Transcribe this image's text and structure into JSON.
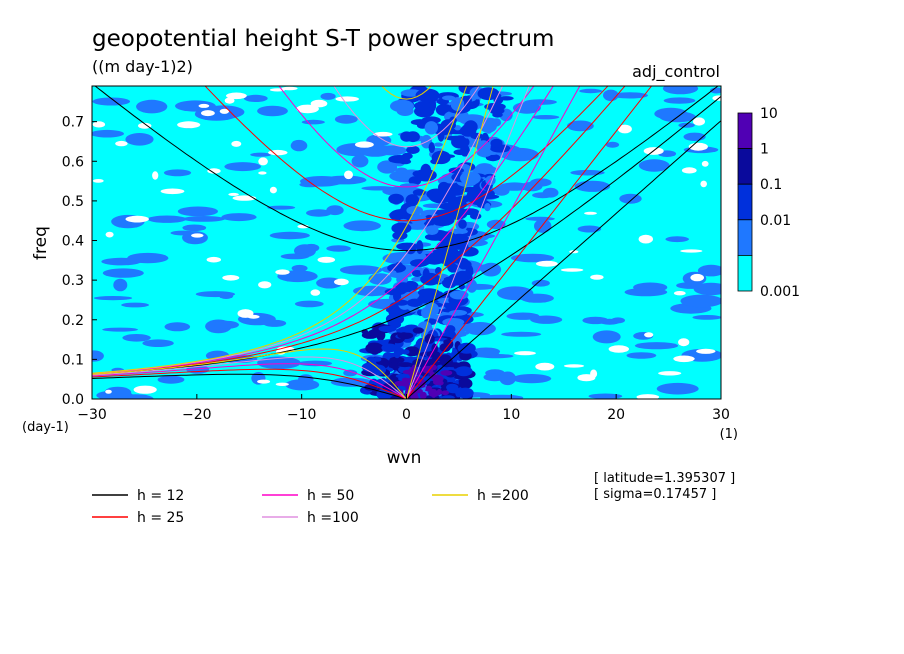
{
  "chart_data": {
    "type": "heatmap",
    "title": "geopotential height S-T power spectrum",
    "subtitle": "((m day-1)2)",
    "case_label": "adj_control",
    "xlabel": "wvn",
    "ylabel": "freq",
    "x_unit": "(1)",
    "y_unit": "(day-1)",
    "xlim": [
      -30,
      30
    ],
    "ylim": [
      0,
      0.79
    ],
    "x_ticks": [
      "−30",
      "−20",
      "−10",
      "0",
      "10",
      "20",
      "30"
    ],
    "x_tick_values": [
      -30,
      -20,
      -10,
      0,
      10,
      20,
      30
    ],
    "y_ticks": [
      "0.0",
      "0.1",
      "0.2",
      "0.3",
      "0.4",
      "0.5",
      "0.6",
      "0.7"
    ],
    "y_tick_values": [
      0,
      0.1,
      0.2,
      0.3,
      0.4,
      0.5,
      0.6,
      0.7
    ],
    "colorbar": {
      "labels": [
        "10",
        "1",
        "0.1",
        "0.01",
        "0.001"
      ],
      "levels": [
        0.001,
        0.01,
        0.1,
        1,
        10
      ],
      "colors": [
        "#00ffff",
        "#1f78ff",
        "#0030dc",
        "#0a0a9c",
        "#5000b4"
      ]
    },
    "dispersion_curves": [
      {
        "name": "h = 12",
        "h": 12,
        "color": "#000000"
      },
      {
        "name": "h = 25",
        "h": 25,
        "color": "#ff0000"
      },
      {
        "name": "h = 50",
        "h": 50,
        "color": "#ff00c8"
      },
      {
        "name": "h =100",
        "h": 100,
        "color": "#e090e0"
      },
      {
        "name": "h =200",
        "h": 200,
        "color": "#e8d000"
      }
    ],
    "annotations": {
      "latitude": "[ latitude=1.395307 ]",
      "sigma": "[ sigma=0.17457 ]"
    },
    "grid": false,
    "legend_placement": "bottom"
  }
}
